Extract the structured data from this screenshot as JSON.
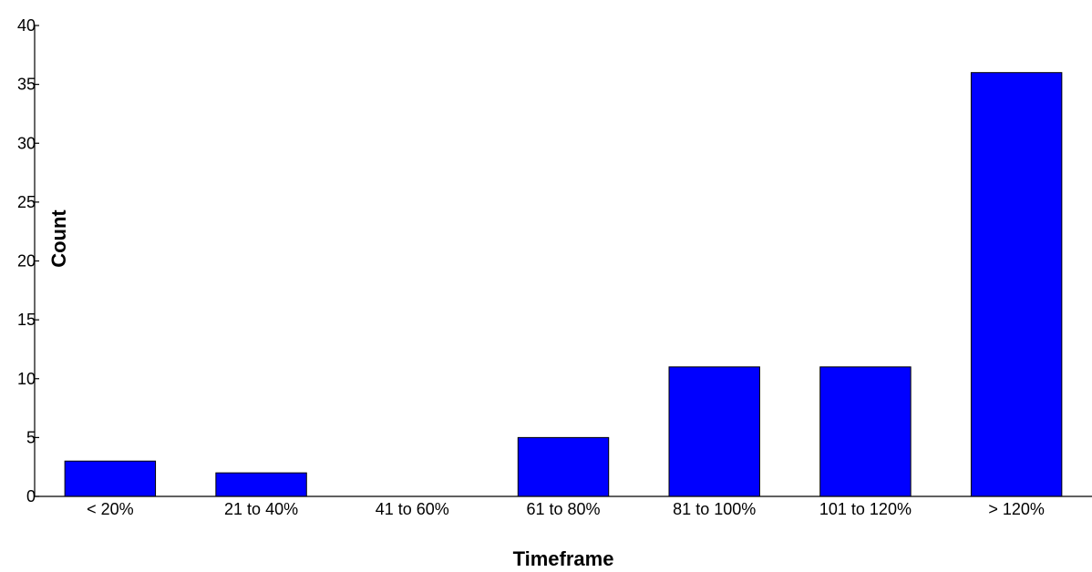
{
  "chart_data": {
    "type": "bar",
    "categories": [
      "< 20%",
      "21 to 40%",
      "41 to 60%",
      "61 to 80%",
      "81 to 100%",
      "101 to 120%",
      "> 120%"
    ],
    "values": [
      3,
      2,
      0,
      5,
      11,
      11,
      36
    ],
    "xlabel": "Timeframe",
    "ylabel": "Count",
    "ylim": [
      0,
      40
    ],
    "yticks": [
      0,
      5,
      10,
      15,
      20,
      25,
      30,
      35,
      40
    ],
    "bar_color": "#0000ff",
    "grid": false,
    "legend": "none"
  }
}
